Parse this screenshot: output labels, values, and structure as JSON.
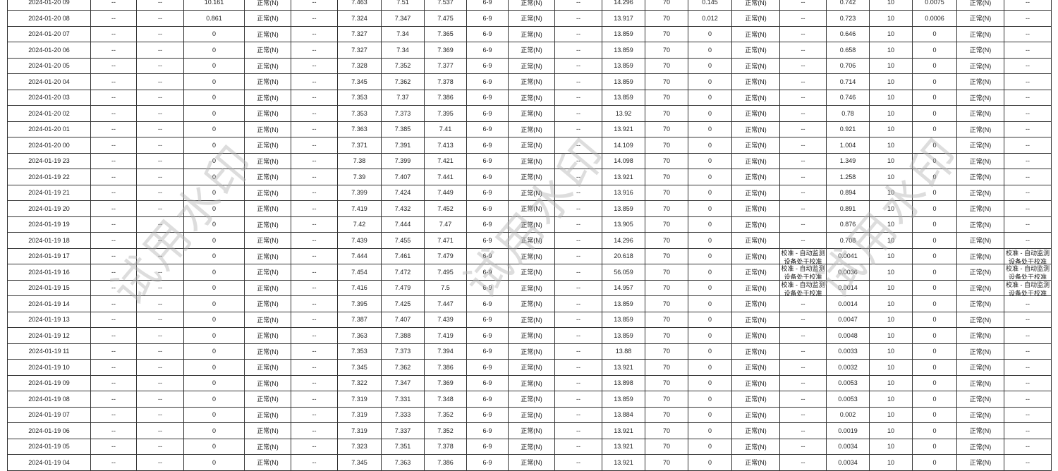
{
  "watermark": "试用水印",
  "calibration_note": "校准 - 自动监测设备处于校准",
  "rows": [
    [
      "2024-01-20 09",
      "--",
      "--",
      "10.161",
      "正常(N)",
      "--",
      "7.463",
      "7.51",
      "7.537",
      "6-9",
      "正常(N)",
      "--",
      "14.296",
      "70",
      "0.145",
      "正常(N)",
      "--",
      "0.742",
      "10",
      "0.0075",
      "正常(N)",
      "--"
    ],
    [
      "2024-01-20 08",
      "--",
      "--",
      "0.861",
      "正常(N)",
      "--",
      "7.324",
      "7.347",
      "7.475",
      "6-9",
      "正常(N)",
      "--",
      "13.917",
      "70",
      "0.012",
      "正常(N)",
      "--",
      "0.723",
      "10",
      "0.0006",
      "正常(N)",
      "--"
    ],
    [
      "2024-01-20 07",
      "--",
      "--",
      "0",
      "正常(N)",
      "--",
      "7.327",
      "7.34",
      "7.365",
      "6-9",
      "正常(N)",
      "--",
      "13.859",
      "70",
      "0",
      "正常(N)",
      "--",
      "0.646",
      "10",
      "0",
      "正常(N)",
      "--"
    ],
    [
      "2024-01-20 06",
      "--",
      "--",
      "0",
      "正常(N)",
      "--",
      "7.327",
      "7.34",
      "7.369",
      "6-9",
      "正常(N)",
      "--",
      "13.859",
      "70",
      "0",
      "正常(N)",
      "--",
      "0.658",
      "10",
      "0",
      "正常(N)",
      "--"
    ],
    [
      "2024-01-20 05",
      "--",
      "--",
      "0",
      "正常(N)",
      "--",
      "7.328",
      "7.352",
      "7.377",
      "6-9",
      "正常(N)",
      "--",
      "13.859",
      "70",
      "0",
      "正常(N)",
      "--",
      "0.706",
      "10",
      "0",
      "正常(N)",
      "--"
    ],
    [
      "2024-01-20 04",
      "--",
      "--",
      "0",
      "正常(N)",
      "--",
      "7.345",
      "7.362",
      "7.378",
      "6-9",
      "正常(N)",
      "--",
      "13.859",
      "70",
      "0",
      "正常(N)",
      "--",
      "0.714",
      "10",
      "0",
      "正常(N)",
      "--"
    ],
    [
      "2024-01-20 03",
      "--",
      "--",
      "0",
      "正常(N)",
      "--",
      "7.353",
      "7.37",
      "7.386",
      "6-9",
      "正常(N)",
      "--",
      "13.859",
      "70",
      "0",
      "正常(N)",
      "--",
      "0.746",
      "10",
      "0",
      "正常(N)",
      "--"
    ],
    [
      "2024-01-20 02",
      "--",
      "--",
      "0",
      "正常(N)",
      "--",
      "7.353",
      "7.373",
      "7.395",
      "6-9",
      "正常(N)",
      "--",
      "13.92",
      "70",
      "0",
      "正常(N)",
      "--",
      "0.78",
      "10",
      "0",
      "正常(N)",
      "--"
    ],
    [
      "2024-01-20 01",
      "--",
      "--",
      "0",
      "正常(N)",
      "--",
      "7.363",
      "7.385",
      "7.41",
      "6-9",
      "正常(N)",
      "--",
      "13.921",
      "70",
      "0",
      "正常(N)",
      "--",
      "0.921",
      "10",
      "0",
      "正常(N)",
      "--"
    ],
    [
      "2024-01-20 00",
      "--",
      "--",
      "0",
      "正常(N)",
      "--",
      "7.371",
      "7.391",
      "7.413",
      "6-9",
      "正常(N)",
      "--",
      "14.109",
      "70",
      "0",
      "正常(N)",
      "--",
      "1.004",
      "10",
      "0",
      "正常(N)",
      "--"
    ],
    [
      "2024-01-19 23",
      "--",
      "--",
      "0",
      "正常(N)",
      "--",
      "7.38",
      "7.399",
      "7.421",
      "6-9",
      "正常(N)",
      "--",
      "14.098",
      "70",
      "0",
      "正常(N)",
      "--",
      "1.349",
      "10",
      "0",
      "正常(N)",
      "--"
    ],
    [
      "2024-01-19 22",
      "--",
      "--",
      "0",
      "正常(N)",
      "--",
      "7.39",
      "7.407",
      "7.441",
      "6-9",
      "正常(N)",
      "--",
      "13.921",
      "70",
      "0",
      "正常(N)",
      "--",
      "1.258",
      "10",
      "0",
      "正常(N)",
      "--"
    ],
    [
      "2024-01-19 21",
      "--",
      "--",
      "0",
      "正常(N)",
      "--",
      "7.399",
      "7.424",
      "7.449",
      "6-9",
      "正常(N)",
      "--",
      "13.916",
      "70",
      "0",
      "正常(N)",
      "--",
      "0.894",
      "10",
      "0",
      "正常(N)",
      "--"
    ],
    [
      "2024-01-19 20",
      "--",
      "--",
      "0",
      "正常(N)",
      "--",
      "7.419",
      "7.432",
      "7.452",
      "6-9",
      "正常(N)",
      "--",
      "13.859",
      "70",
      "0",
      "正常(N)",
      "--",
      "0.891",
      "10",
      "0",
      "正常(N)",
      "--"
    ],
    [
      "2024-01-19 19",
      "--",
      "--",
      "0",
      "正常(N)",
      "--",
      "7.42",
      "7.444",
      "7.47",
      "6-9",
      "正常(N)",
      "--",
      "13.905",
      "70",
      "0",
      "正常(N)",
      "--",
      "0.876",
      "10",
      "0",
      "正常(N)",
      "--"
    ],
    [
      "2024-01-19 18",
      "--",
      "--",
      "0",
      "正常(N)",
      "--",
      "7.439",
      "7.455",
      "7.471",
      "6-9",
      "正常(N)",
      "--",
      "14.296",
      "70",
      "0",
      "正常(N)",
      "--",
      "0.708",
      "10",
      "0",
      "正常(N)",
      "--"
    ],
    [
      "2024-01-19 17",
      "--",
      "--",
      "0",
      "正常(N)",
      "--",
      "7.444",
      "7.461",
      "7.479",
      "6-9",
      "正常(N)",
      "--",
      "20.618",
      "70",
      "0",
      "正常(N)",
      "校准 - 自动监测设备处于校准",
      "0.0041",
      "10",
      "0",
      "正常(N)",
      "校准 - 自动监测设备处于校准"
    ],
    [
      "2024-01-19 16",
      "--",
      "--",
      "0",
      "正常(N)",
      "--",
      "7.454",
      "7.472",
      "7.495",
      "6-9",
      "正常(N)",
      "--",
      "56.059",
      "70",
      "0",
      "正常(N)",
      "校准 - 自动监测设备处于校准",
      "0.0036",
      "10",
      "0",
      "正常(N)",
      "校准 - 自动监测设备处于校准"
    ],
    [
      "2024-01-19 15",
      "--",
      "--",
      "0",
      "正常(N)",
      "--",
      "7.416",
      "7.479",
      "7.5",
      "6-9",
      "正常(N)",
      "--",
      "14.957",
      "70",
      "0",
      "正常(N)",
      "校准 - 自动监测设备处于校准",
      "0.0014",
      "10",
      "0",
      "正常(N)",
      "校准 - 自动监测设备处于校准"
    ],
    [
      "2024-01-19 14",
      "--",
      "--",
      "0",
      "正常(N)",
      "--",
      "7.395",
      "7.425",
      "7.447",
      "6-9",
      "正常(N)",
      "--",
      "13.859",
      "70",
      "0",
      "正常(N)",
      "--",
      "0.0014",
      "10",
      "0",
      "正常(N)",
      "--"
    ],
    [
      "2024-01-19 13",
      "--",
      "--",
      "0",
      "正常(N)",
      "--",
      "7.387",
      "7.407",
      "7.439",
      "6-9",
      "正常(N)",
      "--",
      "13.859",
      "70",
      "0",
      "正常(N)",
      "--",
      "0.0047",
      "10",
      "0",
      "正常(N)",
      "--"
    ],
    [
      "2024-01-19 12",
      "--",
      "--",
      "0",
      "正常(N)",
      "--",
      "7.363",
      "7.388",
      "7.419",
      "6-9",
      "正常(N)",
      "--",
      "13.859",
      "70",
      "0",
      "正常(N)",
      "--",
      "0.0048",
      "10",
      "0",
      "正常(N)",
      "--"
    ],
    [
      "2024-01-19 11",
      "--",
      "--",
      "0",
      "正常(N)",
      "--",
      "7.353",
      "7.373",
      "7.394",
      "6-9",
      "正常(N)",
      "--",
      "13.88",
      "70",
      "0",
      "正常(N)",
      "--",
      "0.0033",
      "10",
      "0",
      "正常(N)",
      "--"
    ],
    [
      "2024-01-19 10",
      "--",
      "--",
      "0",
      "正常(N)",
      "--",
      "7.345",
      "7.362",
      "7.386",
      "6-9",
      "正常(N)",
      "--",
      "13.921",
      "70",
      "0",
      "正常(N)",
      "--",
      "0.0032",
      "10",
      "0",
      "正常(N)",
      "--"
    ],
    [
      "2024-01-19 09",
      "--",
      "--",
      "0",
      "正常(N)",
      "--",
      "7.322",
      "7.347",
      "7.369",
      "6-9",
      "正常(N)",
      "--",
      "13.898",
      "70",
      "0",
      "正常(N)",
      "--",
      "0.0053",
      "10",
      "0",
      "正常(N)",
      "--"
    ],
    [
      "2024-01-19 08",
      "--",
      "--",
      "0",
      "正常(N)",
      "--",
      "7.319",
      "7.331",
      "7.348",
      "6-9",
      "正常(N)",
      "--",
      "13.859",
      "70",
      "0",
      "正常(N)",
      "--",
      "0.0053",
      "10",
      "0",
      "正常(N)",
      "--"
    ],
    [
      "2024-01-19 07",
      "--",
      "--",
      "0",
      "正常(N)",
      "--",
      "7.319",
      "7.333",
      "7.352",
      "6-9",
      "正常(N)",
      "--",
      "13.884",
      "70",
      "0",
      "正常(N)",
      "--",
      "0.002",
      "10",
      "0",
      "正常(N)",
      "--"
    ],
    [
      "2024-01-19 06",
      "--",
      "--",
      "0",
      "正常(N)",
      "--",
      "7.319",
      "7.337",
      "7.352",
      "6-9",
      "正常(N)",
      "--",
      "13.921",
      "70",
      "0",
      "正常(N)",
      "--",
      "0.0019",
      "10",
      "0",
      "正常(N)",
      "--"
    ],
    [
      "2024-01-19 05",
      "--",
      "--",
      "0",
      "正常(N)",
      "--",
      "7.323",
      "7.351",
      "7.378",
      "6-9",
      "正常(N)",
      "--",
      "13.921",
      "70",
      "0",
      "正常(N)",
      "--",
      "0.0034",
      "10",
      "0",
      "正常(N)",
      "--"
    ],
    [
      "2024-01-19 04",
      "--",
      "--",
      "0",
      "正常(N)",
      "--",
      "7.345",
      "7.363",
      "7.386",
      "6-9",
      "正常(N)",
      "--",
      "13.921",
      "70",
      "0",
      "正常(N)",
      "--",
      "0.0034",
      "10",
      "0",
      "正常(N)",
      "--"
    ]
  ]
}
